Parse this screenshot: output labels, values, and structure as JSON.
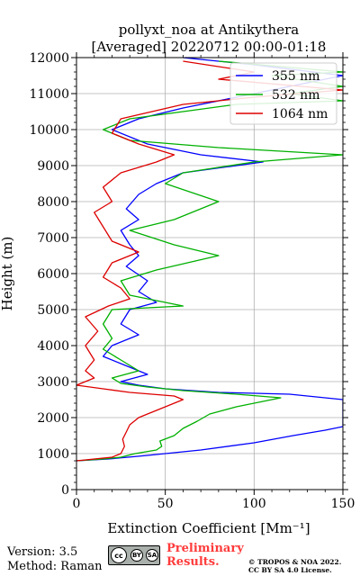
{
  "chart_data": {
    "type": "line",
    "title": [
      "pollyxt_noa at Antikythera",
      "[Averaged] 20220712 00:00-01:18"
    ],
    "xlabel": "Extinction Coefficient [Mm⁻¹]",
    "ylabel": "Height (m)",
    "xlim": [
      0,
      150
    ],
    "ylim": [
      0,
      12000
    ],
    "xticks": [
      0,
      50,
      100,
      150
    ],
    "yticks": [
      0,
      1000,
      2000,
      3000,
      4000,
      5000,
      6000,
      7000,
      8000,
      9000,
      10000,
      11000,
      12000
    ],
    "grid": true,
    "legend_position": "top-right",
    "series": [
      {
        "name": "355 nm",
        "color": "#0000ff",
        "points": [
          [
            0,
            800
          ],
          [
            18,
            850
          ],
          [
            40,
            950
          ],
          [
            70,
            1100
          ],
          [
            100,
            1300
          ],
          [
            122,
            1500
          ],
          [
            140,
            1650
          ],
          [
            150,
            1750
          ],
          [
            150,
            2500
          ],
          [
            120,
            2650
          ],
          [
            80,
            2700
          ],
          [
            50,
            2800
          ],
          [
            35,
            2900
          ],
          [
            25,
            3000
          ],
          [
            40,
            3200
          ],
          [
            30,
            3400
          ],
          [
            15,
            3700
          ],
          [
            20,
            4000
          ],
          [
            35,
            4300
          ],
          [
            25,
            4600
          ],
          [
            30,
            5000
          ],
          [
            45,
            5200
          ],
          [
            35,
            5500
          ],
          [
            40,
            5800
          ],
          [
            28,
            6200
          ],
          [
            35,
            6500
          ],
          [
            30,
            6800
          ],
          [
            25,
            7200
          ],
          [
            35,
            7500
          ],
          [
            28,
            7800
          ],
          [
            35,
            8200
          ],
          [
            45,
            8500
          ],
          [
            60,
            8800
          ],
          [
            105,
            9100
          ],
          [
            70,
            9300
          ],
          [
            40,
            9600
          ],
          [
            20,
            10000
          ],
          [
            35,
            10300
          ],
          [
            60,
            10600
          ],
          [
            90,
            10900
          ],
          [
            120,
            11200
          ],
          [
            150,
            11500
          ],
          [
            100,
            11800
          ],
          [
            60,
            12000
          ]
        ]
      },
      {
        "name": "532 nm",
        "color": "#00b000",
        "points": [
          [
            0,
            800
          ],
          [
            15,
            850
          ],
          [
            25,
            900
          ],
          [
            33,
            1000
          ],
          [
            45,
            1100
          ],
          [
            48,
            1200
          ],
          [
            47,
            1350
          ],
          [
            55,
            1500
          ],
          [
            60,
            1700
          ],
          [
            68,
            1900
          ],
          [
            75,
            2100
          ],
          [
            90,
            2300
          ],
          [
            110,
            2500
          ],
          [
            115,
            2550
          ],
          [
            90,
            2650
          ],
          [
            60,
            2750
          ],
          [
            40,
            2850
          ],
          [
            25,
            2950
          ],
          [
            20,
            3100
          ],
          [
            35,
            3300
          ],
          [
            25,
            3600
          ],
          [
            15,
            3900
          ],
          [
            20,
            4200
          ],
          [
            15,
            4600
          ],
          [
            20,
            5000
          ],
          [
            60,
            5100
          ],
          [
            30,
            5400
          ],
          [
            25,
            5800
          ],
          [
            45,
            6100
          ],
          [
            80,
            6500
          ],
          [
            55,
            6800
          ],
          [
            30,
            7200
          ],
          [
            55,
            7500
          ],
          [
            80,
            8000
          ],
          [
            50,
            8500
          ],
          [
            60,
            8800
          ],
          [
            100,
            9100
          ],
          [
            150,
            9300
          ],
          [
            80,
            9500
          ],
          [
            30,
            9700
          ],
          [
            15,
            10000
          ],
          [
            30,
            10300
          ],
          [
            90,
            10700
          ],
          [
            150,
            10800
          ],
          [
            120,
            11000
          ],
          [
            150,
            11200
          ],
          [
            110,
            11500
          ],
          [
            150,
            11600
          ],
          [
            80,
            11900
          ]
        ]
      },
      {
        "name": "1064 nm",
        "color": "#dd0000",
        "points": [
          [
            0,
            800
          ],
          [
            10,
            850
          ],
          [
            20,
            900
          ],
          [
            25,
            1000
          ],
          [
            27,
            1200
          ],
          [
            26,
            1400
          ],
          [
            28,
            1600
          ],
          [
            30,
            1800
          ],
          [
            35,
            2000
          ],
          [
            40,
            2100
          ],
          [
            50,
            2300
          ],
          [
            60,
            2500
          ],
          [
            55,
            2600
          ],
          [
            30,
            2700
          ],
          [
            15,
            2800
          ],
          [
            0,
            2900
          ],
          [
            10,
            3100
          ],
          [
            5,
            3300
          ],
          [
            10,
            3600
          ],
          [
            5,
            4000
          ],
          [
            12,
            4400
          ],
          [
            5,
            4800
          ],
          [
            18,
            5100
          ],
          [
            30,
            5300
          ],
          [
            25,
            5600
          ],
          [
            15,
            5900
          ],
          [
            20,
            6300
          ],
          [
            35,
            6600
          ],
          [
            20,
            6900
          ],
          [
            15,
            7300
          ],
          [
            10,
            7700
          ],
          [
            20,
            8000
          ],
          [
            15,
            8400
          ],
          [
            25,
            8800
          ],
          [
            45,
            9100
          ],
          [
            55,
            9300
          ],
          [
            35,
            9600
          ],
          [
            20,
            9900
          ],
          [
            25,
            10300
          ],
          [
            60,
            10700
          ],
          [
            100,
            10900
          ],
          [
            150,
            11100
          ],
          [
            80,
            11400
          ],
          [
            100,
            11600
          ],
          [
            60,
            11900
          ]
        ]
      }
    ]
  },
  "footer": {
    "version": "Version: 3.5",
    "method": "Method: Raman",
    "preliminary_line1": "Preliminary",
    "preliminary_line2": "Results.",
    "copyright_line1": "© TROPOS & NOA 2022.",
    "copyright_line2": "CC BY SA 4.0 License.",
    "cc_mark": "cc",
    "cc_by": "BY",
    "cc_sa": "SA"
  }
}
